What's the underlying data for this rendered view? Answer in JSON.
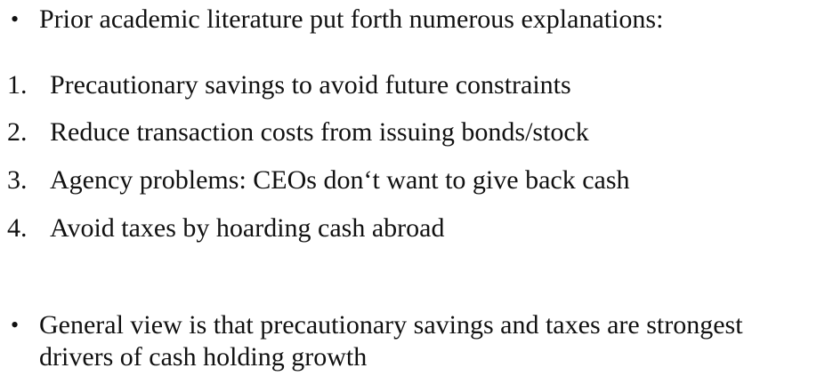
{
  "bullets": [
    {
      "marker": "•",
      "text": "Prior academic literature put forth numerous explanations:"
    },
    {
      "marker": "•",
      "line1": "General view is that precautionary savings and taxes are strongest",
      "line2": "drivers of cash holding growth"
    }
  ],
  "numbered": [
    {
      "marker": "1.",
      "text": "Precautionary savings to avoid future constraints"
    },
    {
      "marker": "2.",
      "text": "Reduce transaction costs from issuing bonds/stock"
    },
    {
      "marker": "3.",
      "text": "Agency problems: CEOs don‘t want to give back cash"
    },
    {
      "marker": "4.",
      "text": "Avoid taxes by hoarding cash abroad"
    }
  ]
}
